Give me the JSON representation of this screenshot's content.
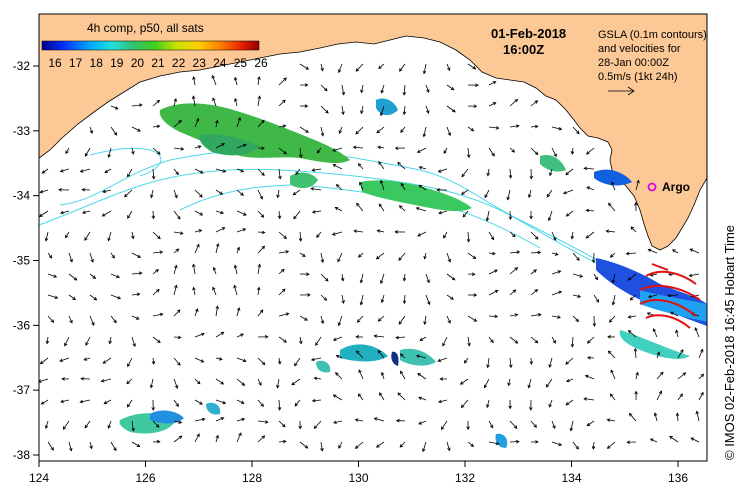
{
  "colorbar": {
    "title": "4h comp, p50, all sats",
    "ticks": [
      "16",
      "17",
      "18",
      "19",
      "20",
      "21",
      "22",
      "23",
      "24",
      "25",
      "26"
    ]
  },
  "date_label": "01-Feb-2018",
  "time_label": "16:00Z",
  "gsla_note": {
    "line1": "GSLA (0.1m contours)",
    "line2": "and velocities for",
    "line3": "28-Jan 00:00Z",
    "line4": "0.5m/s (1kt 24h)"
  },
  "argo_label": "Argo",
  "credit": "©  IMOS 02-Feb-2018 16:45 Hobart Time",
  "axes": {
    "x_ticks": [
      "124",
      "126",
      "128",
      "130",
      "132",
      "134",
      "136"
    ],
    "y_ticks": [
      "-32",
      "-33",
      "-34",
      "-35",
      "-36",
      "-37",
      "-38"
    ]
  },
  "colors": {
    "land": "#fcc896",
    "ocean": "#ffffff",
    "contour": "#4fd8e8",
    "argo": "#e000e0",
    "eddy_arrows": "#e01010"
  }
}
